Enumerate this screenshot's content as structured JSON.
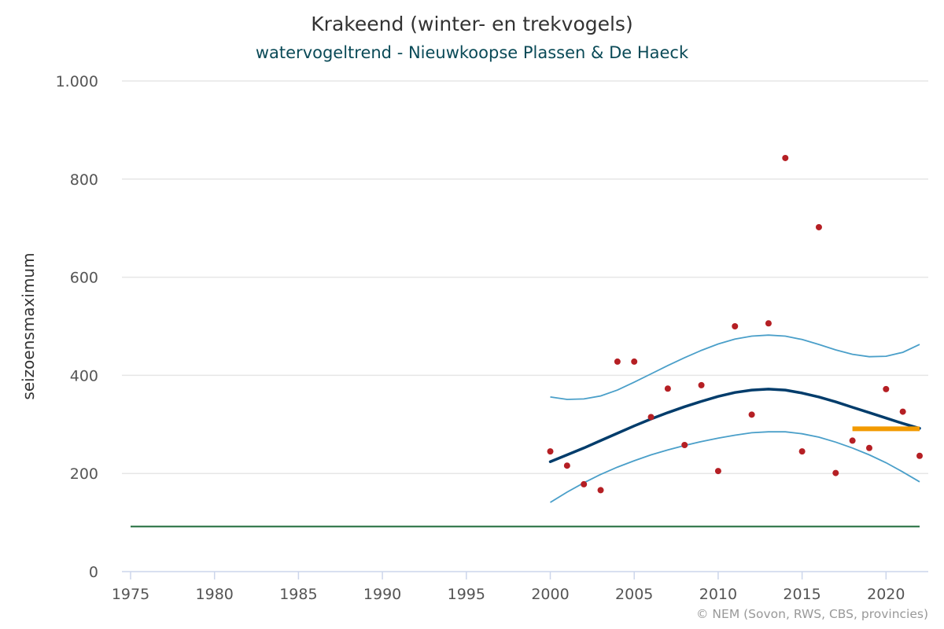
{
  "title": "Krakeend (winter- en trekvogels)",
  "subtitle": "watervogeltrend - Nieuwkoopse Plassen & De Haeck",
  "credits": "© NEM (Sovon, RWS, CBS, provincies)",
  "colors": {
    "points": "#b51f24",
    "trend": "#003c6b",
    "confidence": "#4a9fc9",
    "recent_average": "#f29a00",
    "reference": "#1f6b3a",
    "grid": "#e6e6e6",
    "axis": "#ccd6eb"
  },
  "chart_data": {
    "type": "line",
    "ylabel": "seizoensmaximum",
    "xlim": [
      1975,
      2022
    ],
    "ylim": [
      0,
      1000
    ],
    "x_ticks": [
      1975,
      1980,
      1985,
      1990,
      1995,
      2000,
      2005,
      2010,
      2015,
      2020
    ],
    "x_tick_labels": [
      "1975",
      "1980",
      "1985",
      "1990",
      "1995",
      "2000",
      "2005",
      "2010",
      "2015",
      "2020"
    ],
    "y_ticks": [
      0,
      200,
      400,
      600,
      800,
      1000
    ],
    "y_tick_labels": [
      "0",
      "200",
      "400",
      "600",
      "800",
      "1.000"
    ],
    "grid": true,
    "series": [
      {
        "kind": "scatter",
        "x": [
          2000,
          2001,
          2002,
          2003,
          2004,
          2005,
          2006,
          2007,
          2008,
          2009,
          2010,
          2011,
          2012,
          2013,
          2014,
          2015,
          2016,
          2017,
          2018,
          2019,
          2020,
          2021,
          2022
        ],
        "y": [
          245,
          216,
          178,
          166,
          428,
          428,
          315,
          373,
          258,
          380,
          205,
          500,
          320,
          506,
          843,
          245,
          702,
          201,
          267,
          252,
          372,
          326,
          236
        ]
      },
      {
        "kind": "trend",
        "x": [
          2000,
          2001,
          2002,
          2003,
          2004,
          2005,
          2006,
          2007,
          2008,
          2009,
          2010,
          2011,
          2012,
          2013,
          2014,
          2015,
          2016,
          2017,
          2018,
          2019,
          2020,
          2021,
          2022
        ],
        "y": [
          224,
          238,
          252,
          267,
          282,
          297,
          311,
          324,
          336,
          347,
          357,
          365,
          370,
          372,
          370,
          364,
          356,
          346,
          335,
          324,
          313,
          302,
          292
        ]
      },
      {
        "kind": "upper",
        "x": [
          2000,
          2001,
          2002,
          2003,
          2004,
          2005,
          2006,
          2007,
          2008,
          2009,
          2010,
          2011,
          2012,
          2013,
          2014,
          2015,
          2016,
          2017,
          2018,
          2019,
          2020,
          2021,
          2022
        ],
        "y": [
          356,
          351,
          352,
          358,
          370,
          386,
          403,
          420,
          436,
          451,
          464,
          474,
          480,
          482,
          480,
          473,
          463,
          452,
          443,
          438,
          439,
          447,
          463
        ]
      },
      {
        "kind": "lower",
        "x": [
          2000,
          2001,
          2002,
          2003,
          2004,
          2005,
          2006,
          2007,
          2008,
          2009,
          2010,
          2011,
          2012,
          2013,
          2014,
          2015,
          2016,
          2017,
          2018,
          2019,
          2020,
          2021,
          2022
        ],
        "y": [
          141,
          162,
          181,
          198,
          213,
          226,
          238,
          248,
          257,
          265,
          272,
          278,
          283,
          285,
          285,
          281,
          274,
          264,
          252,
          238,
          222,
          203,
          183
        ]
      },
      {
        "kind": "recent_average",
        "x": [
          2018,
          2022
        ],
        "y": [
          291,
          291
        ]
      },
      {
        "kind": "reference",
        "x": [
          1975,
          2022
        ],
        "y": [
          92,
          92
        ]
      }
    ]
  }
}
